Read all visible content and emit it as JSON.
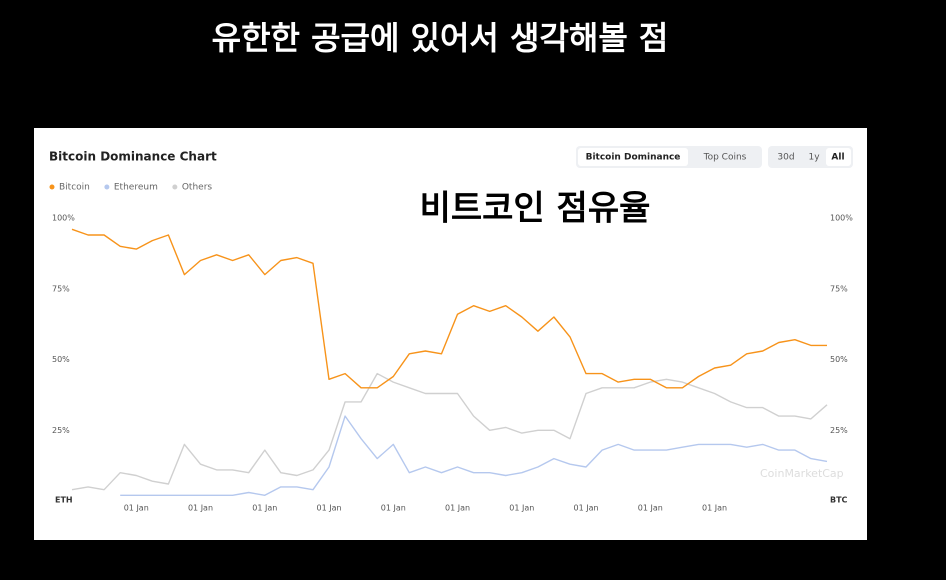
{
  "header": {
    "title": "유한한 공급에 있어서 생각해볼 점"
  },
  "controls": {
    "tabs": [
      "Bitcoin Dominance",
      "Top Coins"
    ],
    "ranges": [
      "30d",
      "1y",
      "All"
    ]
  },
  "chart_data": {
    "type": "line",
    "title": "Bitcoin Dominance Chart",
    "overlay_text": "비트코인 점유율",
    "watermark": "CoinMarketCap",
    "axis_labels": [
      "ETH",
      "BTC"
    ],
    "categories": [
      null,
      null,
      null,
      null,
      "01 Jan",
      null,
      null,
      null,
      "01 Jan",
      null,
      null,
      null,
      "01 Jan",
      null,
      null,
      null,
      "01 Jan",
      null,
      null,
      null,
      "01 Jan",
      null,
      null,
      null,
      "01 Jan",
      null,
      null,
      null,
      "01 Jan",
      null,
      null,
      null,
      "01 Jan",
      null,
      null,
      null,
      "01 Jan",
      null,
      null,
      null,
      "01 Jan",
      null,
      null,
      null,
      null,
      null,
      null,
      null
    ],
    "series": [
      {
        "name": "Bitcoin",
        "color": "#f7931a",
        "values": [
          96,
          94,
          94,
          90,
          89,
          92,
          94,
          80,
          85,
          87,
          85,
          87,
          80,
          85,
          86,
          84,
          43,
          45,
          40,
          40,
          44,
          52,
          53,
          52,
          66,
          69,
          67,
          69,
          65,
          60,
          65,
          58,
          45,
          45,
          42,
          43,
          43,
          40,
          40,
          44,
          47,
          48,
          52,
          53,
          56,
          57,
          55,
          55
        ]
      },
      {
        "name": "Ethereum",
        "color": "#b5c8ee",
        "values": [
          null,
          null,
          null,
          2,
          2,
          2,
          2,
          2,
          2,
          2,
          2,
          3,
          2,
          5,
          5,
          4,
          12,
          30,
          22,
          15,
          20,
          10,
          12,
          10,
          12,
          10,
          10,
          9,
          10,
          12,
          15,
          13,
          12,
          18,
          20,
          18,
          18,
          18,
          19,
          20,
          20,
          20,
          19,
          20,
          18,
          18,
          15,
          14
        ]
      },
      {
        "name": "Others",
        "color": "#d0d0d0",
        "values": [
          4,
          5,
          4,
          10,
          9,
          7,
          6,
          20,
          13,
          11,
          11,
          10,
          18,
          10,
          9,
          11,
          18,
          35,
          35,
          45,
          42,
          40,
          38,
          38,
          38,
          30,
          25,
          26,
          24,
          25,
          25,
          22,
          38,
          40,
          40,
          40,
          42,
          43,
          42,
          40,
          38,
          35,
          33,
          33,
          30,
          30,
          29,
          34
        ]
      }
    ],
    "ylim": [
      0,
      100
    ],
    "yticks": [
      {
        "value": 25,
        "label": "25%"
      },
      {
        "value": 50,
        "label": "50%"
      },
      {
        "value": 75,
        "label": "75%"
      },
      {
        "value": 100,
        "label": "100%"
      }
    ],
    "grid": false,
    "legend": "top-left"
  }
}
